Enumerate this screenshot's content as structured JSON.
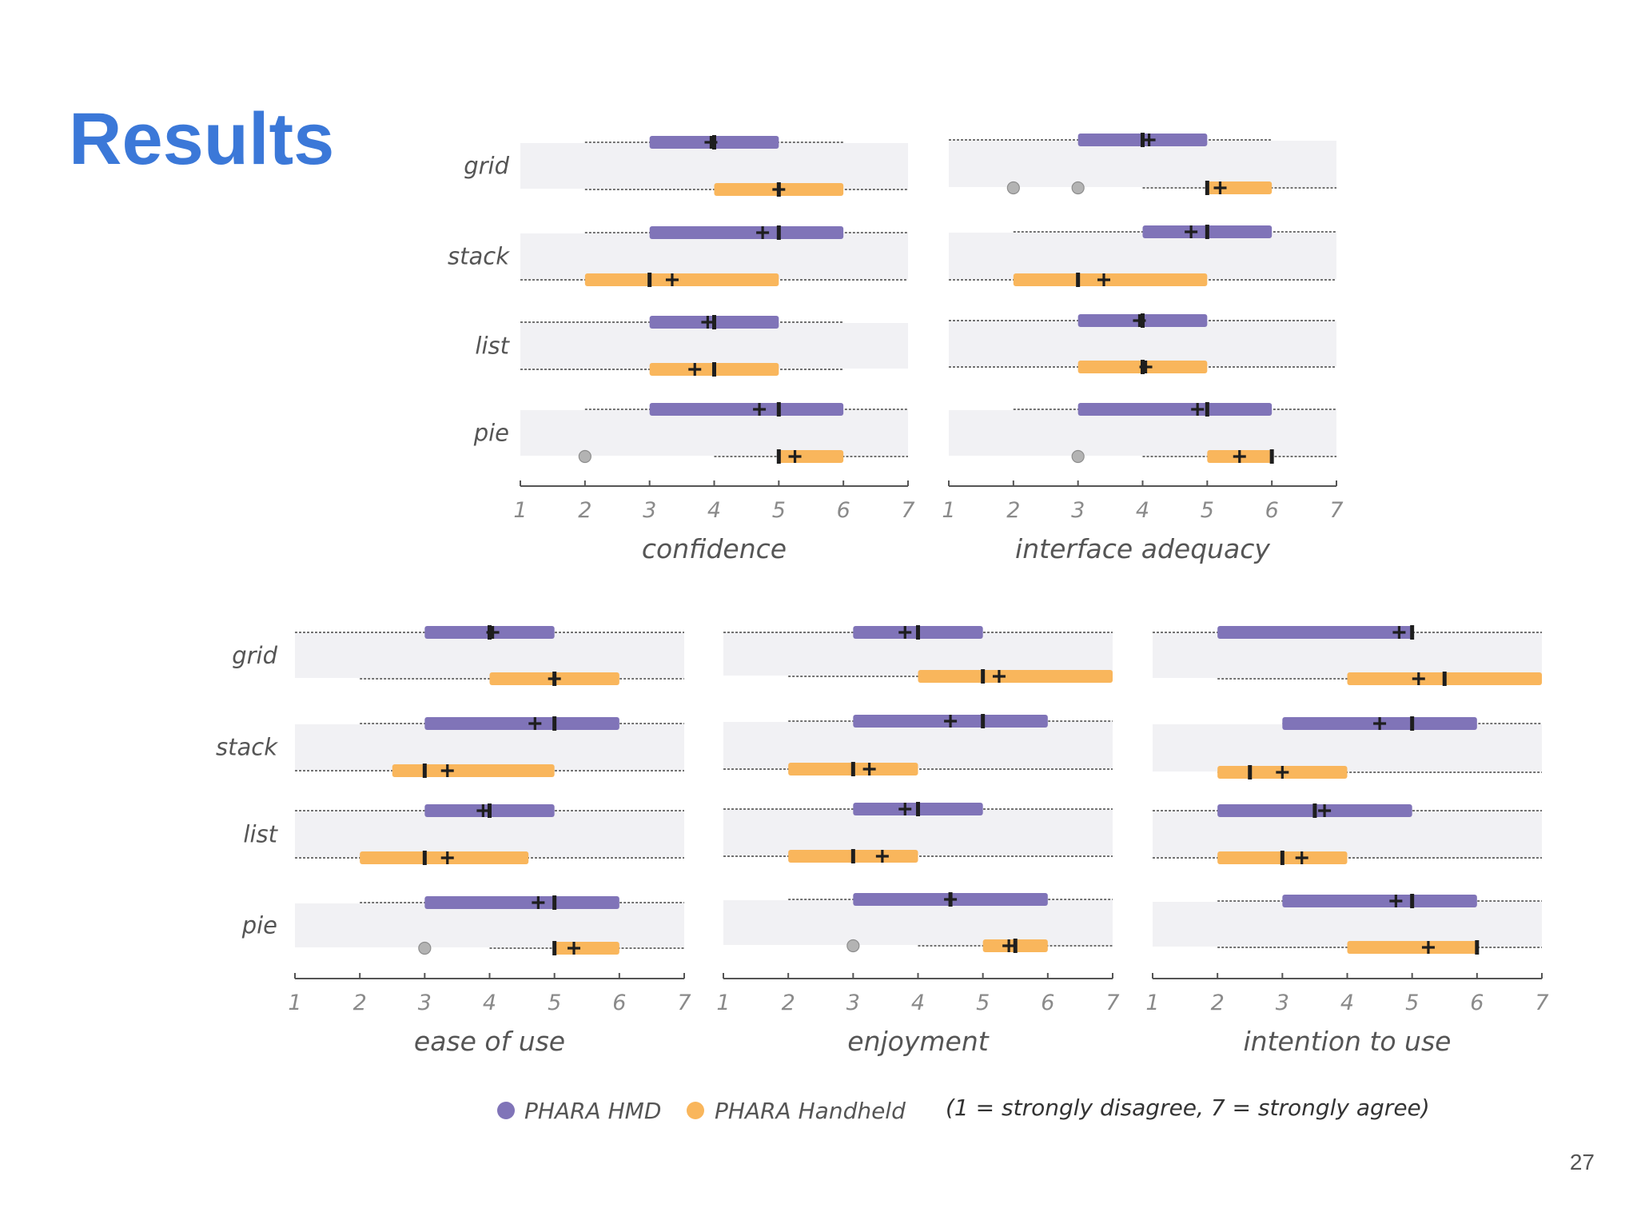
{
  "slide": {
    "title": "Results",
    "page_number": "27"
  },
  "colors": {
    "hmd": "#8074b8",
    "handheld": "#f9b65c",
    "band": "#f1f1f4",
    "outlier": "#b3b3b3",
    "axis": "#555555",
    "whisker": "#444444",
    "marker": "#1e1e1e"
  },
  "chart_data": [
    {
      "type": "boxplot",
      "xlabel": "confidence",
      "xlim": [
        1,
        7
      ],
      "xticks": [
        "1",
        "2",
        "3",
        "4",
        "5",
        "6",
        "7"
      ],
      "show_row_labels": true,
      "rows": [
        {
          "label": "grid",
          "hmd": {
            "min": 2,
            "q1": 3,
            "q3": 5,
            "max": 6,
            "median": 4,
            "mean": 3.95,
            "outliers": []
          },
          "handheld": {
            "min": 2,
            "q1": 4,
            "q3": 6,
            "max": 7,
            "median": 5,
            "mean": 5.0,
            "outliers": []
          }
        },
        {
          "label": "stack",
          "hmd": {
            "min": 2,
            "q1": 3,
            "q3": 6,
            "max": 7,
            "median": 5,
            "mean": 4.75,
            "outliers": []
          },
          "handheld": {
            "min": 1,
            "q1": 2,
            "q3": 5,
            "max": 7,
            "median": 3,
            "mean": 3.35,
            "outliers": []
          }
        },
        {
          "label": "list",
          "hmd": {
            "min": 1,
            "q1": 3,
            "q3": 5,
            "max": 6,
            "median": 4,
            "mean": 3.9,
            "outliers": []
          },
          "handheld": {
            "min": 1,
            "q1": 3,
            "q3": 5,
            "max": 6,
            "median": 4,
            "mean": 3.7,
            "outliers": []
          }
        },
        {
          "label": "pie",
          "hmd": {
            "min": 2,
            "q1": 3,
            "q3": 6,
            "max": 7,
            "median": 5,
            "mean": 4.7,
            "outliers": []
          },
          "handheld": {
            "min": 4,
            "q1": 5,
            "q3": 6,
            "max": 7,
            "median": 5,
            "mean": 5.25,
            "outliers": [
              2
            ]
          }
        }
      ]
    },
    {
      "type": "boxplot",
      "xlabel": "interface adequacy",
      "xlim": [
        1,
        7
      ],
      "xticks": [
        "1",
        "2",
        "3",
        "4",
        "5",
        "6",
        "7"
      ],
      "show_row_labels": false,
      "rows": [
        {
          "label": "grid",
          "hmd": {
            "min": 1,
            "q1": 3,
            "q3": 5,
            "max": 6,
            "median": 4,
            "mean": 4.1,
            "outliers": []
          },
          "handheld": {
            "min": 4,
            "q1": 5,
            "q3": 6,
            "max": 7,
            "median": 5,
            "mean": 5.2,
            "outliers": [
              2,
              3
            ]
          }
        },
        {
          "label": "stack",
          "hmd": {
            "min": 2,
            "q1": 4,
            "q3": 6,
            "max": 7,
            "median": 5,
            "mean": 4.75,
            "outliers": []
          },
          "handheld": {
            "min": 1,
            "q1": 2,
            "q3": 5,
            "max": 7,
            "median": 3,
            "mean": 3.4,
            "outliers": []
          }
        },
        {
          "label": "list",
          "hmd": {
            "min": 1,
            "q1": 3,
            "q3": 5,
            "max": 7,
            "median": 4,
            "mean": 3.95,
            "outliers": []
          },
          "handheld": {
            "min": 1,
            "q1": 3,
            "q3": 5,
            "max": 7,
            "median": 4,
            "mean": 4.05,
            "outliers": []
          }
        },
        {
          "label": "pie",
          "hmd": {
            "min": 2,
            "q1": 3,
            "q3": 6,
            "max": 7,
            "median": 5,
            "mean": 4.85,
            "outliers": []
          },
          "handheld": {
            "min": 4,
            "q1": 5,
            "q3": 6,
            "max": 7,
            "median": 6,
            "mean": 5.5,
            "outliers": [
              3
            ]
          }
        }
      ]
    },
    {
      "type": "boxplot",
      "xlabel": "ease of use",
      "xlim": [
        1,
        7
      ],
      "xticks": [
        "1",
        "2",
        "3",
        "4",
        "5",
        "6",
        "7"
      ],
      "show_row_labels": true,
      "rows": [
        {
          "label": "grid",
          "hmd": {
            "min": 1,
            "q1": 3,
            "q3": 5,
            "max": 7,
            "median": 4,
            "mean": 4.05,
            "outliers": []
          },
          "handheld": {
            "min": 2,
            "q1": 4,
            "q3": 6,
            "max": 7,
            "median": 5,
            "mean": 5.0,
            "outliers": []
          }
        },
        {
          "label": "stack",
          "hmd": {
            "min": 2,
            "q1": 3,
            "q3": 6,
            "max": 7,
            "median": 5,
            "mean": 4.7,
            "outliers": []
          },
          "handheld": {
            "min": 1,
            "q1": 2.5,
            "q3": 5,
            "max": 7,
            "median": 3,
            "mean": 3.35,
            "outliers": []
          }
        },
        {
          "label": "list",
          "hmd": {
            "min": 1,
            "q1": 3,
            "q3": 5,
            "max": 7,
            "median": 4,
            "mean": 3.9,
            "outliers": []
          },
          "handheld": {
            "min": 1,
            "q1": 2,
            "q3": 4.6,
            "max": 7,
            "median": 3,
            "mean": 3.35,
            "outliers": []
          }
        },
        {
          "label": "pie",
          "hmd": {
            "min": 2,
            "q1": 3,
            "q3": 6,
            "max": 7,
            "median": 5,
            "mean": 4.75,
            "outliers": []
          },
          "handheld": {
            "min": 4,
            "q1": 5,
            "q3": 6,
            "max": 7,
            "median": 5,
            "mean": 5.3,
            "outliers": [
              3
            ]
          }
        }
      ]
    },
    {
      "type": "boxplot",
      "xlabel": "enjoyment",
      "xlim": [
        1,
        7
      ],
      "xticks": [
        "1",
        "2",
        "3",
        "4",
        "5",
        "6",
        "7"
      ],
      "show_row_labels": false,
      "rows": [
        {
          "label": "grid",
          "hmd": {
            "min": 1,
            "q1": 3,
            "q3": 5,
            "max": 7,
            "median": 4,
            "mean": 3.8,
            "outliers": []
          },
          "handheld": {
            "min": 2,
            "q1": 4,
            "q3": 7,
            "max": 7,
            "median": 5,
            "mean": 5.25,
            "outliers": []
          }
        },
        {
          "label": "stack",
          "hmd": {
            "min": 2,
            "q1": 3,
            "q3": 6,
            "max": 7,
            "median": 5,
            "mean": 4.5,
            "outliers": []
          },
          "handheld": {
            "min": 1,
            "q1": 2,
            "q3": 4,
            "max": 7,
            "median": 3,
            "mean": 3.25,
            "outliers": []
          }
        },
        {
          "label": "list",
          "hmd": {
            "min": 1,
            "q1": 3,
            "q3": 5,
            "max": 7,
            "median": 4,
            "mean": 3.8,
            "outliers": []
          },
          "handheld": {
            "min": 1,
            "q1": 2,
            "q3": 4,
            "max": 7,
            "median": 3,
            "mean": 3.45,
            "outliers": []
          }
        },
        {
          "label": "pie",
          "hmd": {
            "min": 2,
            "q1": 3,
            "q3": 6,
            "max": 7,
            "median": 4.5,
            "mean": 4.5,
            "outliers": []
          },
          "handheld": {
            "min": 4,
            "q1": 5,
            "q3": 6,
            "max": 7,
            "median": 5.5,
            "mean": 5.4,
            "outliers": [
              3
            ]
          }
        }
      ]
    },
    {
      "type": "boxplot",
      "xlabel": "intention to use",
      "xlim": [
        1,
        7
      ],
      "xticks": [
        "1",
        "2",
        "3",
        "4",
        "5",
        "6",
        "7"
      ],
      "show_row_labels": false,
      "rows": [
        {
          "label": "grid",
          "hmd": {
            "min": 1,
            "q1": 2,
            "q3": 5,
            "max": 7,
            "median": 5,
            "mean": 4.8,
            "outliers": []
          },
          "handheld": {
            "min": 2,
            "q1": 4,
            "q3": 7,
            "max": 7,
            "median": 5.5,
            "mean": 5.1,
            "outliers": []
          }
        },
        {
          "label": "stack",
          "hmd": {
            "min": 3,
            "q1": 3,
            "q3": 6,
            "max": 7,
            "median": 5,
            "mean": 4.5,
            "outliers": []
          },
          "handheld": {
            "min": 2,
            "q1": 2,
            "q3": 4,
            "max": 7,
            "median": 2.5,
            "mean": 3.0,
            "outliers": []
          }
        },
        {
          "label": "list",
          "hmd": {
            "min": 1,
            "q1": 2,
            "q3": 5,
            "max": 7,
            "median": 3.5,
            "mean": 3.65,
            "outliers": []
          },
          "handheld": {
            "min": 1,
            "q1": 2,
            "q3": 4,
            "max": 7,
            "median": 3,
            "mean": 3.3,
            "outliers": []
          }
        },
        {
          "label": "pie",
          "hmd": {
            "min": 2,
            "q1": 3,
            "q3": 6,
            "max": 7,
            "median": 5,
            "mean": 4.75,
            "outliers": []
          },
          "handheld": {
            "min": 2,
            "q1": 4,
            "q3": 6,
            "max": 7,
            "median": 6,
            "mean": 5.25,
            "outliers": []
          }
        }
      ]
    }
  ],
  "legend": {
    "hmd_label": "PHARA HMD",
    "handheld_label": "PHARA Handheld",
    "scale_note": "(1 = strongly disagree, 7 = strongly agree)"
  }
}
